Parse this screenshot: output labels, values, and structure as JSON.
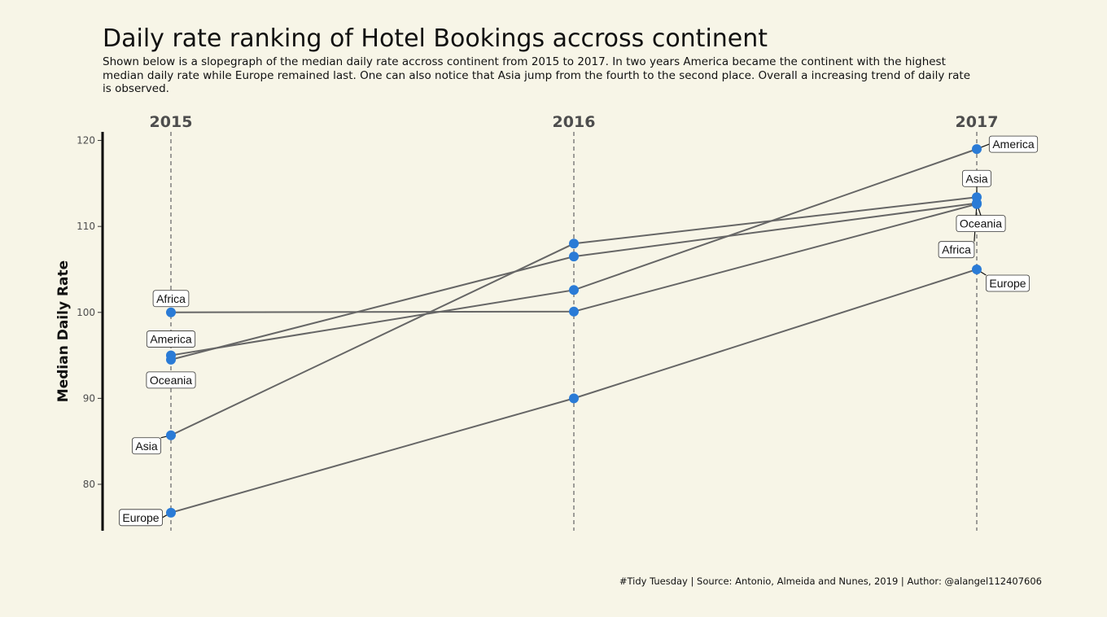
{
  "header": {
    "title": "Daily rate ranking of Hotel Bookings accross continent",
    "subtitle": "Shown below is a slopegraph of the median daily rate accross continent from 2015 to 2017. In two years America became the continent with the highest median daily rate while Europe remained last. One can also notice that Asia jump from the fourth to the second place. Overall a increasing trend of daily rate is observed."
  },
  "footer": {
    "caption": "#Tidy Tuesday | Source: Antonio, Almeida and Nunes, 2019 | Author: @alangel112407606"
  },
  "colors": {
    "background": "#f7f5e7",
    "point": "#2a7bd6",
    "line": "#666666",
    "text": "#4d4d4d"
  },
  "chart_data": {
    "type": "line",
    "title": "Daily rate ranking of Hotel Bookings accross continent",
    "ylabel": "Median Daily Rate",
    "xlabel": "",
    "x": [
      "2015",
      "2016",
      "2017"
    ],
    "ylim": [
      74.6,
      121
    ],
    "yticks": [
      80,
      90,
      100,
      110,
      120
    ],
    "grid": "vertical dashed lines at years",
    "series": [
      {
        "name": "Africa",
        "values": [
          100.0,
          100.1,
          112.6
        ]
      },
      {
        "name": "America",
        "values": [
          95.0,
          102.6,
          119.0
        ]
      },
      {
        "name": "Oceania",
        "values": [
          94.5,
          106.5,
          112.7
        ]
      },
      {
        "name": "Asia",
        "values": [
          85.7,
          108.0,
          113.4
        ]
      },
      {
        "name": "Europe",
        "values": [
          76.7,
          90.0,
          105.0
        ]
      }
    ]
  }
}
